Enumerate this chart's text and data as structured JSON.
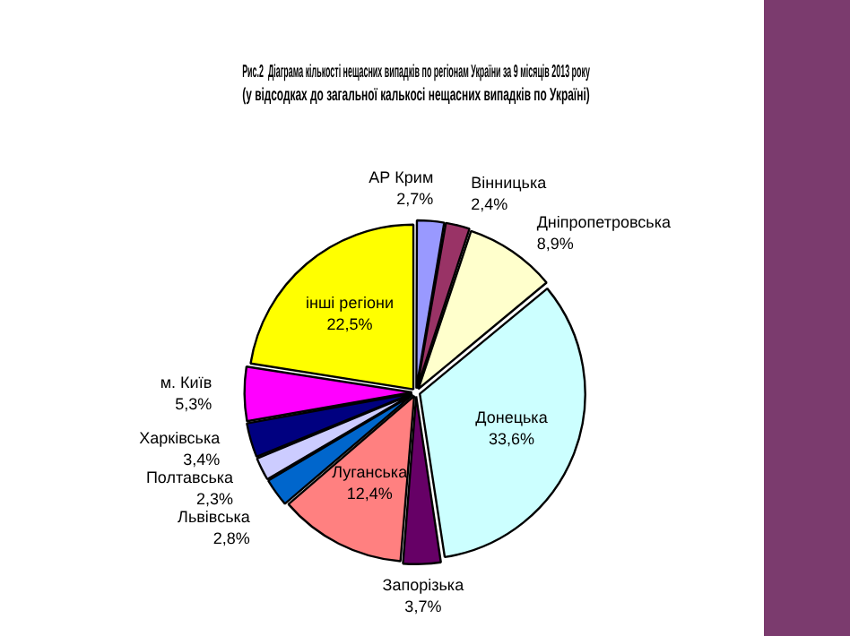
{
  "chart_data": {
    "type": "pie",
    "title": "Рис.2  Діаграма кількості нещасних випадків по регіонам України за 9 місяців 2013 року",
    "subtitle": "(у відсодках до загальної калькосі нещасних випадків по Україні)",
    "categories": [
      "АР Крим",
      "Вінницька",
      "Дніпропетровська",
      "Донецька",
      "Запорізька",
      "Луганська",
      "Львівська",
      "Полтавська",
      "Харківська",
      "м. Київ",
      "інші регіони"
    ],
    "values": [
      2.7,
      2.4,
      8.9,
      33.6,
      3.7,
      12.4,
      2.8,
      2.3,
      3.4,
      5.3,
      22.5
    ],
    "value_labels": [
      "2,7%",
      "2,4%",
      "8,9%",
      "33,6%",
      "3,7%",
      "12,4%",
      "2,8%",
      "2,3%",
      "3,4%",
      "5,3%",
      "22,5%"
    ],
    "colors": [
      "#9999ff",
      "#993366",
      "#ffffcc",
      "#ccffff",
      "#660066",
      "#ff8080",
      "#0066cc",
      "#ccccff",
      "#000080",
      "#ff00ff",
      "#ffff00"
    ],
    "legend": false
  }
}
